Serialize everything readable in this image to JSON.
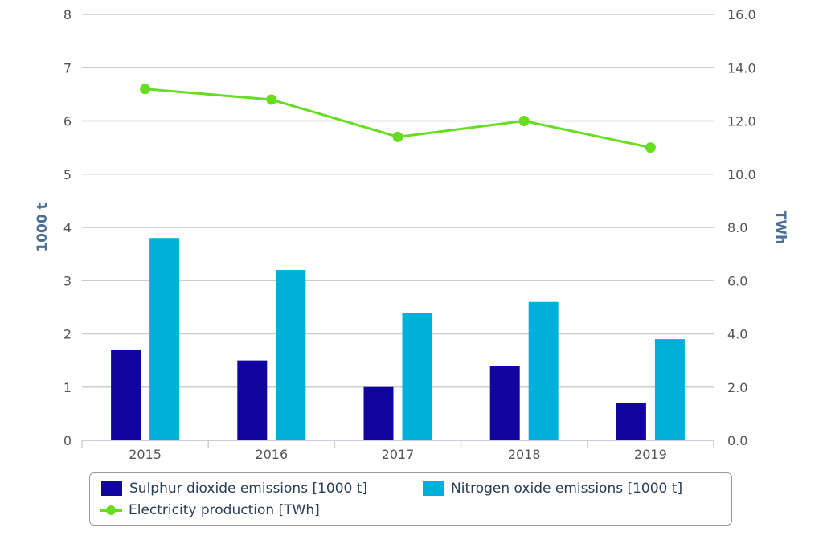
{
  "chart_data": {
    "type": "bar",
    "categories": [
      "2015",
      "2016",
      "2017",
      "2018",
      "2019"
    ],
    "series": [
      {
        "name": "Sulphur dioxide emissions [1000 t]",
        "type": "bar",
        "axis": "left",
        "color": "#10069f",
        "values": [
          1.7,
          1.5,
          1.0,
          1.4,
          0.7
        ]
      },
      {
        "name": "Nitrogen oxide emissions [1000 t]",
        "type": "bar",
        "axis": "left",
        "color": "#00b0da",
        "values": [
          3.8,
          3.2,
          2.4,
          2.6,
          1.9
        ]
      },
      {
        "name": "Electricity production [TWh]",
        "type": "line",
        "axis": "right",
        "color": "#66dd22",
        "values": [
          13.2,
          12.8,
          11.4,
          12.0,
          11.0
        ]
      }
    ],
    "y_left": {
      "label": "1000 t",
      "ylim": [
        0,
        8
      ],
      "ticks": [
        "0",
        "1",
        "2",
        "3",
        "4",
        "5",
        "6",
        "7",
        "8"
      ]
    },
    "y_right": {
      "label": "TWh",
      "ylim": [
        0,
        16
      ],
      "ticks": [
        "0.0",
        "2.0",
        "4.0",
        "6.0",
        "8.0",
        "10.0",
        "12.0",
        "14.0",
        "16.0"
      ]
    },
    "grid": true,
    "legend_position": "bottom"
  }
}
